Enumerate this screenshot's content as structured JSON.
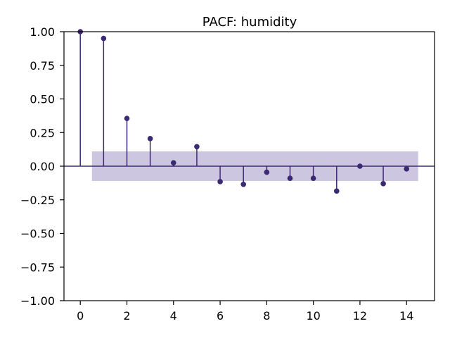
{
  "chart_data": {
    "type": "stem",
    "title": "PACF: humidity",
    "xlabel": "",
    "ylabel": "",
    "x": [
      0,
      1,
      2,
      3,
      4,
      5,
      6,
      7,
      8,
      9,
      10,
      11,
      12,
      13,
      14
    ],
    "values": [
      1.0,
      0.95,
      0.355,
      0.205,
      0.025,
      0.145,
      -0.115,
      -0.135,
      -0.045,
      -0.09,
      -0.09,
      -0.185,
      0.0,
      -0.13,
      -0.02
    ],
    "confidence_band": [
      -0.11,
      0.11
    ],
    "confidence_band_x_range": [
      0.5,
      14.5
    ],
    "xlim": [
      -0.7,
      15.2
    ],
    "ylim": [
      -1.0,
      1.0
    ],
    "x_ticks": [
      0,
      2,
      4,
      6,
      8,
      10,
      12,
      14
    ],
    "y_ticks": [
      -1.0,
      -0.75,
      -0.5,
      -0.25,
      0.0,
      0.25,
      0.5,
      0.75,
      1.0
    ],
    "y_tick_labels": [
      "−1.00",
      "−0.75",
      "−0.50",
      "−0.25",
      "0.00",
      "0.25",
      "0.50",
      "0.75",
      "1.00"
    ],
    "x_tick_labels": [
      "0",
      "2",
      "4",
      "6",
      "8",
      "10",
      "12",
      "14"
    ],
    "grid": false,
    "colors": {
      "stem": "#3b2a73",
      "band": "#cdc6e0",
      "zero_line": "#3b2a73",
      "axes": "#000000"
    }
  }
}
